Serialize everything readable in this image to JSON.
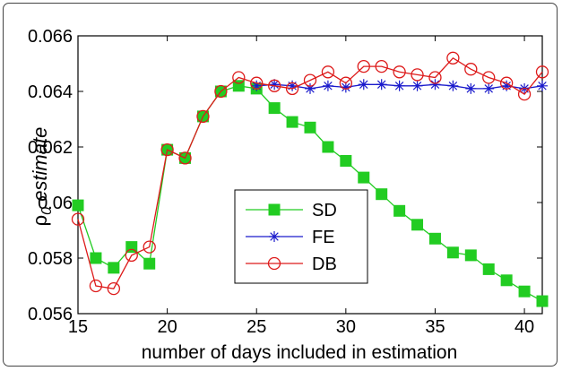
{
  "chart_data": {
    "type": "line",
    "xlabel": "number of days included in estimation",
    "ylabel_symbol": "ρ",
    "ylabel_subscript": "0",
    "ylabel_rest": " estimate",
    "xlim": [
      15,
      41
    ],
    "ylim": [
      0.056,
      0.066
    ],
    "xticks": [
      15,
      20,
      25,
      30,
      35,
      40
    ],
    "xtick_labels": [
      "15",
      "20",
      "25",
      "30",
      "35",
      "40"
    ],
    "yticks": [
      0.056,
      0.058,
      0.06,
      0.062,
      0.064,
      0.066
    ],
    "ytick_labels": [
      "0.056",
      "0.058",
      "0.06",
      "0.062",
      "0.064",
      "0.066"
    ],
    "grid": false,
    "legend_position": "lower-center",
    "x": [
      15,
      16,
      17,
      18,
      19,
      20,
      21,
      22,
      23,
      24,
      25,
      26,
      27,
      28,
      29,
      30,
      31,
      32,
      33,
      34,
      35,
      36,
      37,
      38,
      39,
      40,
      41
    ],
    "series": [
      {
        "name": "SD",
        "color": "#22cc22",
        "marker": "square",
        "values": [
          0.0599,
          0.058,
          0.05765,
          0.0584,
          0.0578,
          0.0619,
          0.0616,
          0.0631,
          0.064,
          0.0642,
          0.0641,
          0.0634,
          0.0629,
          0.0627,
          0.062,
          0.0615,
          0.0609,
          0.0603,
          0.0597,
          0.0592,
          0.0587,
          0.0582,
          0.0581,
          0.0576,
          0.0572,
          0.0568,
          0.05645
        ]
      },
      {
        "name": "FE",
        "color": "#1a1acc",
        "marker": "star",
        "values": [
          null,
          null,
          null,
          null,
          null,
          null,
          null,
          null,
          null,
          null,
          0.0642,
          0.06425,
          0.0642,
          0.0641,
          0.0642,
          0.06415,
          0.06425,
          0.06425,
          0.0642,
          0.0642,
          0.06425,
          0.0642,
          0.0641,
          0.0641,
          0.0642,
          0.0641,
          0.0642
        ]
      },
      {
        "name": "DB",
        "color": "#dd1a1a",
        "marker": "circle",
        "values": [
          0.0594,
          0.057,
          0.0569,
          0.0581,
          0.0584,
          0.0619,
          0.0616,
          0.0631,
          0.064,
          0.0645,
          0.0643,
          0.0642,
          0.0641,
          0.0644,
          0.0647,
          0.0643,
          0.0649,
          0.0649,
          0.0647,
          0.0646,
          0.0645,
          0.0652,
          0.0648,
          0.0645,
          0.0643,
          0.0639,
          0.0647
        ]
      }
    ]
  }
}
